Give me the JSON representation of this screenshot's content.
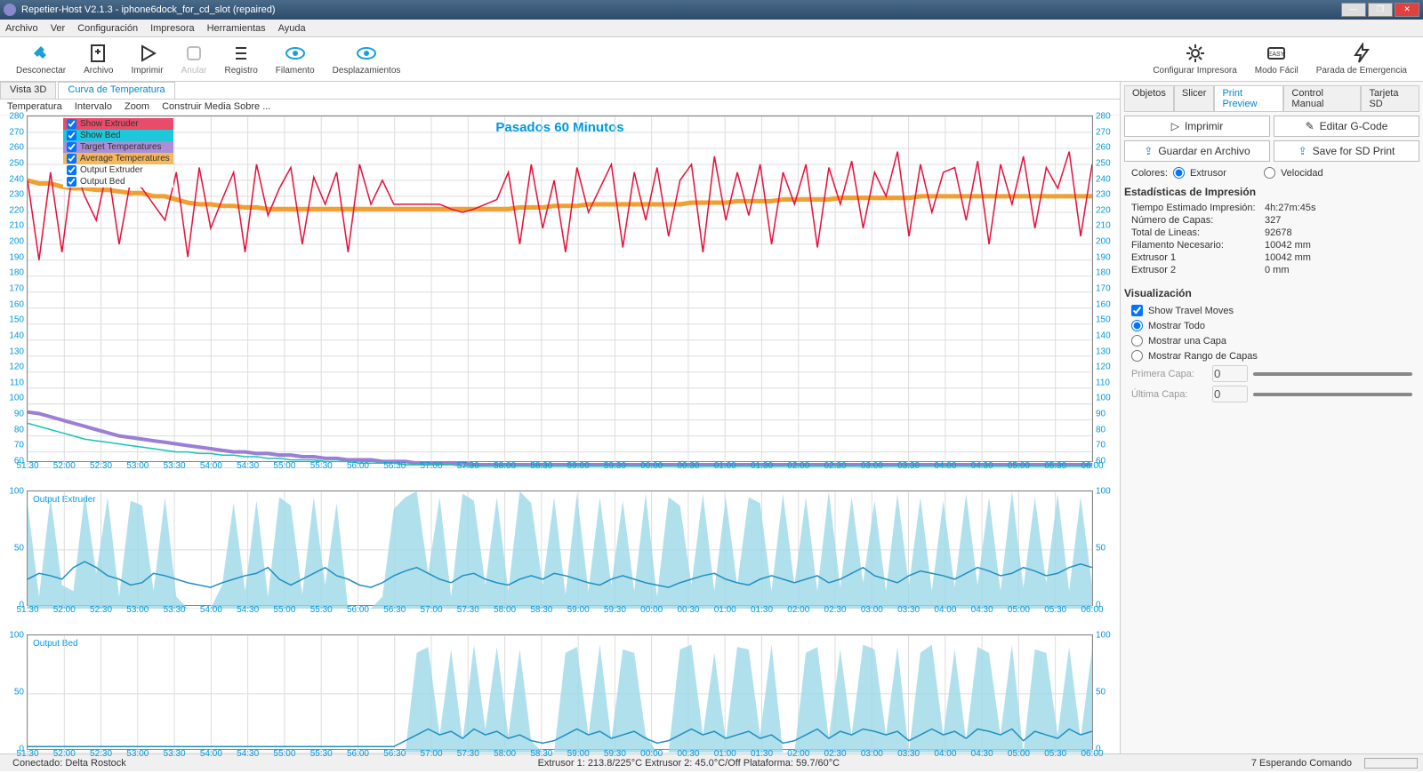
{
  "window": {
    "title": "Repetier-Host V2.1.3 - iphone6dock_for_cd_slot (repaired)"
  },
  "menu": [
    "Archivo",
    "Ver",
    "Configuración",
    "Impresora",
    "Herramientas",
    "Ayuda"
  ],
  "toolbar": {
    "disconnect": "Desconectar",
    "file": "Archivo",
    "print": "Imprimir",
    "cancel": "Anular",
    "log": "Registro",
    "filament": "Filamento",
    "travel": "Desplazamientos",
    "config_printer": "Configurar Impresora",
    "easy_mode": "Modo Fácil",
    "emergency": "Parada de Emergencia"
  },
  "view_tabs": {
    "view3d": "Vista 3D",
    "temp_curve": "Curva de Temperatura"
  },
  "chart_menu": [
    "Temperatura",
    "Intervalo",
    "Zoom",
    "Construir Media Sobre ..."
  ],
  "main_chart": {
    "title": "Pasados 60 Minutos",
    "ymin": 60,
    "ymax": 280,
    "ystep": 10,
    "y_ticks": [
      60,
      70,
      80,
      90,
      100,
      110,
      120,
      130,
      140,
      150,
      160,
      170,
      180,
      190,
      200,
      210,
      220,
      230,
      240,
      250,
      260,
      270,
      280
    ],
    "x_ticks": [
      "51:30",
      "52:00",
      "52:30",
      "53:00",
      "53:30",
      "54:00",
      "54:30",
      "55:00",
      "55:30",
      "56:00",
      "56:30",
      "57:00",
      "57:30",
      "58:00",
      "58:30",
      "59:00",
      "59:30",
      "00:00",
      "00:30",
      "01:00",
      "01:30",
      "02:00",
      "02:30",
      "03:00",
      "03:30",
      "04:00",
      "04:30",
      "05:00",
      "05:30",
      "06:00"
    ],
    "legend": [
      {
        "label": "Show Extruder",
        "bg": "#e94b6a",
        "checked": true
      },
      {
        "label": "Show Bed",
        "bg": "#1ec8d8",
        "checked": true
      },
      {
        "label": "Target Temperatures",
        "bg": "#a88fd8",
        "checked": true
      },
      {
        "label": "Average Temperatures",
        "bg": "#f5b85a",
        "checked": true
      },
      {
        "label": "Output Extruder",
        "bg": "#ffffff",
        "checked": true
      },
      {
        "label": "Output Bed",
        "bg": "#ffffff",
        "checked": true
      }
    ],
    "colors": {
      "extruder": "#e6113c",
      "bed": "#17c4b4",
      "target": "#9b7fd4",
      "average": "#f0a030",
      "grid": "#dddddd",
      "axis": "#0099dd"
    },
    "extruder_baseline": 225,
    "extruder_noise_values": [
      240,
      190,
      245,
      195,
      250,
      230,
      215,
      248,
      200,
      240,
      235,
      225,
      215,
      245,
      192,
      248,
      210,
      228,
      245,
      195,
      250,
      218,
      235,
      248,
      200,
      242,
      225,
      245,
      195,
      250,
      225,
      240,
      225,
      225,
      225,
      225,
      225,
      222,
      220,
      222,
      225,
      228,
      245,
      200,
      250,
      210,
      240,
      195,
      248,
      220,
      235,
      250,
      198,
      245,
      215,
      248,
      205,
      240,
      250,
      195,
      255,
      215,
      245,
      218,
      250,
      200,
      245,
      225,
      250,
      198,
      248,
      225,
      252,
      210,
      245,
      230,
      258,
      205,
      250,
      220,
      245,
      248,
      215,
      252,
      200,
      250,
      225,
      255,
      210,
      248,
      235,
      258,
      205,
      250
    ],
    "average_values": [
      240,
      238,
      238,
      236,
      235,
      235,
      234,
      234,
      233,
      232,
      232,
      230,
      230,
      228,
      226,
      225,
      225,
      224,
      224,
      223,
      223,
      222,
      222,
      222,
      222,
      222,
      222,
      222,
      222,
      222,
      222,
      222,
      222,
      222,
      222,
      222,
      222,
      222,
      222,
      222,
      222,
      222,
      222,
      223,
      223,
      223,
      224,
      224,
      224,
      225,
      225,
      225,
      225,
      225,
      225,
      225,
      225,
      225,
      226,
      226,
      226,
      226,
      227,
      227,
      227,
      227,
      228,
      228,
      228,
      228,
      228,
      229,
      229,
      229,
      229,
      229,
      229,
      229,
      230,
      230,
      230,
      230,
      230,
      230,
      230,
      230,
      230,
      230,
      230,
      230,
      230,
      230,
      230,
      230
    ],
    "target_values": [
      95,
      94,
      92,
      90,
      88,
      86,
      84,
      82,
      80,
      79,
      78,
      77,
      76,
      75,
      74,
      73,
      72,
      71,
      70,
      70,
      69,
      69,
      68,
      68,
      67,
      67,
      66,
      66,
      65,
      65,
      65,
      64,
      64,
      64,
      63,
      63,
      63,
      63,
      63,
      62,
      62,
      62,
      62,
      62,
      62,
      62,
      62,
      62,
      62,
      62,
      62,
      62,
      62,
      62,
      62,
      62,
      62,
      62,
      62,
      62,
      62,
      62,
      62,
      62,
      62,
      62,
      62,
      62,
      62,
      62,
      62,
      62,
      62,
      62,
      62,
      62,
      62,
      62,
      62,
      62,
      62,
      62,
      62,
      62,
      62,
      62,
      62,
      62,
      62,
      62,
      62,
      62,
      62,
      62
    ],
    "bed_values": [
      88,
      86,
      84,
      82,
      80,
      78,
      77,
      76,
      75,
      74,
      73,
      72,
      71,
      70,
      70,
      69,
      69,
      68,
      68,
      67,
      67,
      66,
      66,
      65,
      65,
      65,
      64,
      64,
      64,
      63,
      63,
      63,
      63,
      62,
      62,
      62,
      62,
      62,
      61,
      61,
      61,
      61,
      61,
      61,
      61,
      61,
      61,
      61,
      61,
      61,
      61,
      61,
      61,
      61,
      61,
      61,
      61,
      61,
      61,
      61,
      61,
      61,
      61,
      61,
      61,
      61,
      61,
      61,
      61,
      61,
      61,
      61,
      61,
      61,
      61,
      61,
      61,
      61,
      61,
      61,
      61,
      61,
      61,
      61,
      61,
      61,
      61,
      61,
      61,
      61,
      61,
      61,
      61,
      61
    ]
  },
  "out_extruder": {
    "label": "Output Extruder",
    "ymin": 0,
    "ymax": 100,
    "y_ticks": [
      0,
      50,
      100
    ],
    "line_color": "#2090c0",
    "fill_color": "#9dd8e8",
    "fill_values": [
      90,
      10,
      95,
      20,
      15,
      98,
      30,
      95,
      10,
      92,
      88,
      15,
      95,
      10,
      0,
      0,
      0,
      20,
      90,
      15,
      92,
      10,
      95,
      88,
      12,
      95,
      20,
      90,
      0,
      0,
      0,
      10,
      85,
      95,
      100,
      30,
      95,
      10,
      98,
      92,
      20,
      95,
      15,
      100,
      90,
      20,
      95,
      12,
      98,
      15,
      95,
      20,
      92,
      15,
      98,
      10,
      95,
      88,
      20,
      98,
      15,
      95,
      20,
      95,
      90,
      15,
      98,
      20,
      95,
      15,
      100,
      18,
      95,
      22,
      92,
      15,
      98,
      20,
      95,
      15,
      92,
      18,
      98,
      20,
      95,
      15,
      100,
      18,
      95,
      22,
      98,
      15,
      95,
      20
    ],
    "line_values": [
      25,
      30,
      28,
      25,
      35,
      40,
      35,
      28,
      25,
      20,
      22,
      30,
      28,
      25,
      22,
      20,
      18,
      22,
      25,
      28,
      30,
      35,
      25,
      20,
      25,
      30,
      35,
      28,
      25,
      20,
      18,
      22,
      28,
      32,
      35,
      30,
      25,
      22,
      28,
      30,
      25,
      22,
      20,
      25,
      28,
      25,
      30,
      28,
      25,
      22,
      20,
      25,
      28,
      25,
      22,
      20,
      18,
      22,
      25,
      28,
      30,
      25,
      22,
      20,
      25,
      28,
      25,
      22,
      25,
      28,
      22,
      25,
      30,
      35,
      28,
      25,
      22,
      28,
      32,
      30,
      28,
      25,
      30,
      35,
      32,
      28,
      30,
      35,
      32,
      28,
      30,
      35,
      38,
      35
    ]
  },
  "out_bed": {
    "label": "Output Bed",
    "ymin": 0,
    "ymax": 100,
    "y_ticks": [
      0,
      50,
      100
    ],
    "line_color": "#2090c0",
    "fill_color": "#9dd8e8",
    "fill_values": [
      0,
      0,
      0,
      0,
      0,
      0,
      0,
      0,
      0,
      0,
      0,
      0,
      0,
      0,
      0,
      0,
      0,
      0,
      0,
      0,
      0,
      0,
      0,
      0,
      0,
      0,
      0,
      0,
      0,
      0,
      0,
      0,
      0,
      0,
      85,
      90,
      15,
      88,
      10,
      92,
      20,
      90,
      15,
      88,
      10,
      0,
      0,
      85,
      90,
      15,
      92,
      10,
      88,
      85,
      15,
      0,
      0,
      88,
      92,
      15,
      85,
      10,
      90,
      88,
      15,
      92,
      0,
      0,
      85,
      90,
      12,
      88,
      15,
      92,
      88,
      15,
      90,
      0,
      85,
      92,
      15,
      88,
      10,
      90,
      85,
      15,
      92,
      0,
      88,
      85,
      15,
      90,
      12,
      88
    ],
    "line_values": [
      5,
      5,
      5,
      5,
      5,
      5,
      5,
      5,
      5,
      5,
      5,
      5,
      5,
      5,
      5,
      5,
      5,
      5,
      5,
      5,
      5,
      5,
      5,
      5,
      5,
      5,
      5,
      5,
      5,
      5,
      5,
      5,
      5,
      10,
      15,
      20,
      15,
      18,
      12,
      20,
      15,
      18,
      12,
      15,
      10,
      8,
      10,
      15,
      20,
      15,
      18,
      12,
      15,
      18,
      12,
      8,
      10,
      15,
      20,
      15,
      18,
      12,
      15,
      18,
      12,
      15,
      8,
      10,
      15,
      20,
      12,
      18,
      15,
      20,
      18,
      15,
      18,
      10,
      15,
      20,
      15,
      18,
      12,
      20,
      18,
      15,
      20,
      10,
      18,
      15,
      12,
      20,
      15,
      18
    ]
  },
  "right_tabs": [
    "Objetos",
    "Slicer",
    "Print Preview",
    "Control Manual",
    "Tarjeta SD"
  ],
  "right": {
    "print": "Imprimir",
    "edit_gcode": "Editar G-Code",
    "save_file": "Guardar en Archivo",
    "save_sd": "Save for SD Print",
    "colors_label": "Colores:",
    "color_extruder": "Extrusor",
    "color_speed": "Velocidad",
    "stats_header": "Estadísticas de Impresión",
    "stats": [
      {
        "k": "Tiempo Estimado Impresión:",
        "v": "4h:27m:45s"
      },
      {
        "k": "Número de Capas:",
        "v": "327"
      },
      {
        "k": "Total de Lineas:",
        "v": "92678"
      },
      {
        "k": "Filamento Necesario:",
        "v": "10042 mm"
      },
      {
        "k": "Extrusor 1",
        "v": "10042 mm"
      },
      {
        "k": "Extrusor 2",
        "v": "0 mm"
      }
    ],
    "viz_header": "Visualización",
    "show_travel": "Show Travel Moves",
    "show_all": "Mostrar Todo",
    "show_one": "Mostrar una Capa",
    "show_range": "Mostrar Rango de Capas",
    "first_layer": "Primera Capa:",
    "last_layer": "Última Capa:",
    "spin_val": "0"
  },
  "status": {
    "left": "Conectado: Delta Rostock",
    "mid": "Extrusor 1: 213.8/225°C Extrusor 2: 45.0°C/Off Plataforma: 59.7/60°C",
    "right": "7 Esperando Comando"
  }
}
